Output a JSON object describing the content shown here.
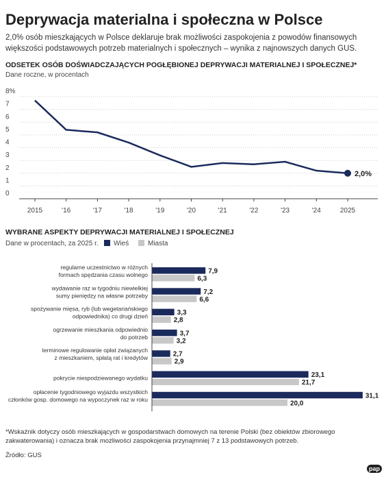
{
  "header": {
    "title": "Deprywacja materialna i społeczna w Polsce",
    "subtitle": "2,0% osób mieszkających w Polsce deklaruje brak możliwości zaspokojenia z powodów finansowych większości podstawowych potrzeb materialnych i społecznych – wynika z najnowszych danych GUS."
  },
  "chart_data": [
    {
      "type": "line",
      "title": "ODSETEK OSÓB DOŚWIADCZAJĄCYCH POGŁĘBIONEJ DEPRYWACJI MATERIALNEJ I SPOŁECZNEJ*",
      "subtitle": "Dane roczne, w procentach",
      "categories": [
        "2015",
        "'16",
        "'17",
        "'18",
        "'19",
        "'20",
        "'21",
        "'22",
        "'23",
        "'24",
        "2025"
      ],
      "values": [
        7.7,
        5.4,
        5.2,
        4.4,
        3.4,
        2.5,
        2.8,
        2.7,
        2.9,
        2.2,
        2.0
      ],
      "value_labels": [
        null,
        null,
        null,
        null,
        null,
        null,
        null,
        null,
        null,
        null,
        "2,0%"
      ],
      "color": "#1b2a5c",
      "ylim": [
        0,
        8
      ],
      "yticks": [
        0,
        1,
        2,
        3,
        4,
        5,
        6,
        7,
        {
          "value": 8,
          "label": "8%"
        }
      ],
      "grid": true
    },
    {
      "type": "hbar",
      "title": "WYBRANE ASPEKTY DEPRYWACJI MATERIALNEJ I SPOŁECZNEJ",
      "subtitle": "Dane w procentach, za 2025 r.",
      "categories": [
        "regularne uczestnictwo w różnych\nformach spędzania czasu wolnego",
        "wydawanie raz w tygodniu niewielkiej\nsumy pieniędzy na własne potrzeby",
        "spożywanie mięsa, ryb (lub wegetariańskiego\nodpowiednika) co drugi dzień",
        "ogrzewanie mieszkania odpowiednio\ndo potrzeb",
        "terminowe regulowanie opłat związanych\nz mieszkaniem, spłatą rat i kredytów",
        "pokrycie niespodziewanego wydatku",
        "opłacenie tygodniowego wyjazdu wszystkich\nczłonków gosp. domowego na wypoczynek raz w roku"
      ],
      "series": [
        {
          "name": "Wieś",
          "color": "#1b2a5c",
          "values": [
            7.9,
            7.2,
            3.3,
            3.7,
            2.7,
            23.1,
            31.1
          ],
          "value_labels": [
            "7,9",
            "7,2",
            "3,3",
            "3,7",
            "2,7",
            "23,1",
            "31,1"
          ]
        },
        {
          "name": "Miasta",
          "color": "#c8c8c8",
          "values": [
            6.3,
            6.6,
            2.8,
            3.2,
            2.9,
            21.7,
            20.0
          ],
          "value_labels": [
            "6,3",
            "6,6",
            "2,8",
            "3,2",
            "2,9",
            "21,7",
            "20,0"
          ]
        }
      ]
    }
  ],
  "footer": {
    "note": "*Wskaźnik dotyczy osób mieszkających w gospodarstwach domowych na terenie Polski (bez obiektów zbiorowego\nzakwaterowania) i oznacza brak możliwości zaspokojenia przynajmniej 7 z 13 podstawowych potrzeb.",
    "source": "Źródło: GUS",
    "logo": "pap"
  }
}
